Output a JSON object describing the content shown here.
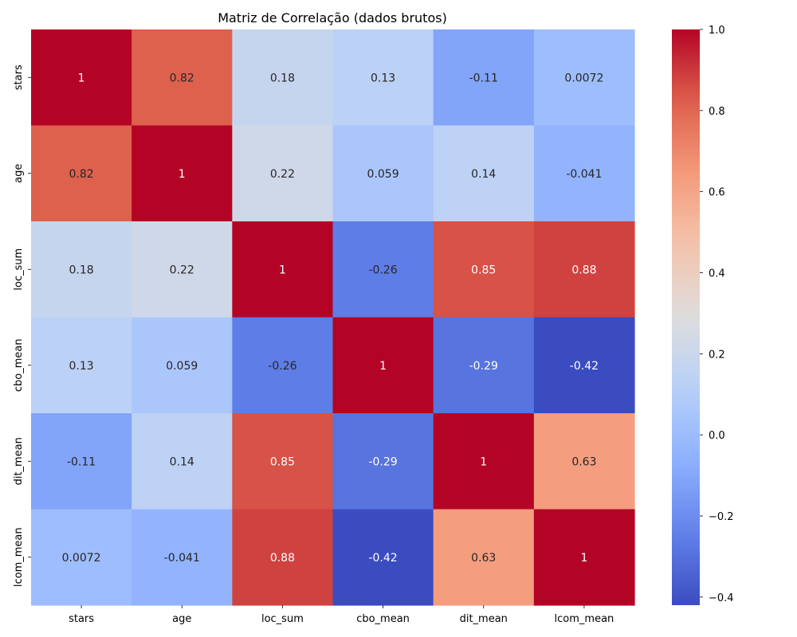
{
  "chart_data": {
    "type": "heatmap",
    "title": "Matriz de Correlação (dados brutos)",
    "xlabel": "",
    "ylabel": "",
    "labels": [
      "stars",
      "age",
      "loc_sum",
      "cbo_mean",
      "dit_mean",
      "lcom_mean"
    ],
    "matrix": [
      [
        1,
        0.82,
        0.18,
        0.13,
        -0.11,
        0.0072
      ],
      [
        0.82,
        1,
        0.22,
        0.059,
        0.14,
        -0.041
      ],
      [
        0.18,
        0.22,
        1,
        -0.26,
        0.85,
        0.88
      ],
      [
        0.13,
        0.059,
        -0.26,
        1,
        -0.29,
        -0.42
      ],
      [
        -0.11,
        0.14,
        0.85,
        -0.29,
        1,
        0.63
      ],
      [
        0.0072,
        -0.041,
        0.88,
        -0.42,
        0.63,
        1
      ]
    ],
    "annotations": [
      [
        "1",
        "0.82",
        "0.18",
        "0.13",
        "-0.11",
        "0.0072"
      ],
      [
        "0.82",
        "1",
        "0.22",
        "0.059",
        "0.14",
        "-0.041"
      ],
      [
        "0.18",
        "0.22",
        "1",
        "-0.26",
        "0.85",
        "0.88"
      ],
      [
        "0.13",
        "0.059",
        "-0.26",
        "1",
        "-0.29",
        "-0.42"
      ],
      [
        "-0.11",
        "0.14",
        "0.85",
        "-0.29",
        "1",
        "0.63"
      ],
      [
        "0.0072",
        "-0.041",
        "0.88",
        "-0.42",
        "0.63",
        "1"
      ]
    ],
    "colormap": "coolwarm",
    "vmin": -0.42,
    "vmax": 1.0,
    "colorbar": {
      "ticks": [
        -0.4,
        -0.2,
        0.0,
        0.2,
        0.4,
        0.6,
        0.8,
        1.0
      ],
      "tick_labels": [
        "−0.4",
        "−0.2",
        "0.0",
        "0.2",
        "0.4",
        "0.6",
        "0.8",
        "1.0"
      ]
    },
    "grid": false,
    "legend": "colorbar-right"
  }
}
